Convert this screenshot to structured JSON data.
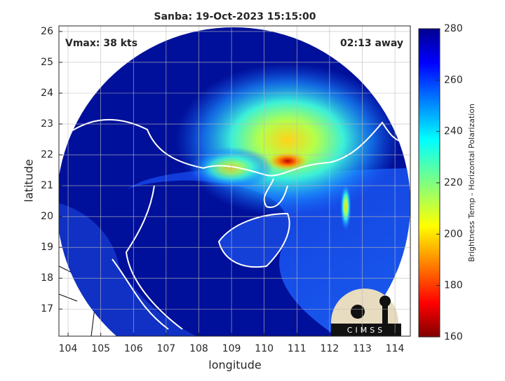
{
  "title": "Sanba: 19-Oct-2023 15:15:00",
  "annotations": {
    "vmax": "Vmax: 38 kts",
    "time_away": "02:13 away"
  },
  "xlabel": "longitude",
  "ylabel": "latitude",
  "xlim": [
    103.72,
    114.47
  ],
  "xticks": [
    104,
    105,
    106,
    107,
    108,
    109,
    110,
    111,
    112,
    113,
    114
  ],
  "ylim": [
    16.12,
    26.18
  ],
  "yticks": [
    17,
    18,
    19,
    20,
    21,
    22,
    23,
    24,
    25,
    26
  ],
  "colorbar": {
    "label": "Brightness Temp - Horizontal Polarization",
    "lim": [
      160,
      280
    ],
    "ticks": [
      160,
      180,
      200,
      220,
      240,
      260,
      280
    ]
  },
  "logo": "CIMSS"
}
